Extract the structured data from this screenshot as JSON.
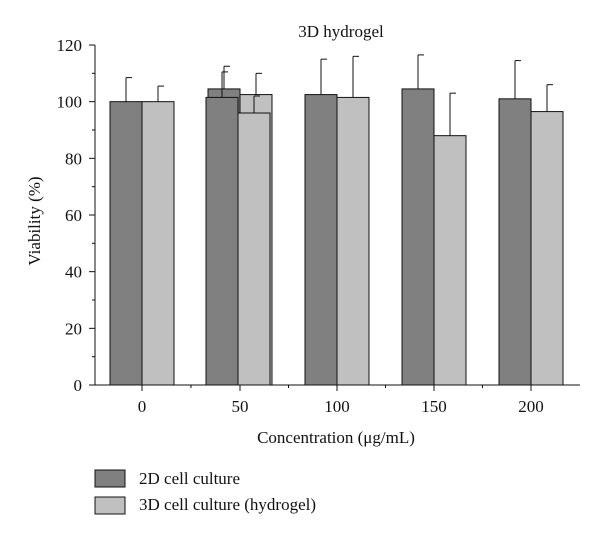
{
  "chart_data": {
    "type": "bar",
    "title": "3D hydrogel",
    "xlabel": "Concentration (μg/mL)",
    "ylabel": "Viability (%)",
    "ylim": [
      0,
      120
    ],
    "yticks": [
      0,
      20,
      40,
      60,
      80,
      100,
      120
    ],
    "categories": [
      "0",
      "50",
      "100",
      "150",
      "200"
    ],
    "series": [
      {
        "name": "2D cell culture",
        "color": "#808080",
        "values": [
          100,
          104.5,
          102.5,
          104.5,
          101
        ],
        "errors": [
          8.5,
          8,
          12.5,
          12,
          13.5
        ]
      },
      {
        "name": "3D cell culture (hydrogel)",
        "color": "#c0c0c0",
        "values": [
          100,
          102.5,
          101.5,
          88,
          96.5
        ],
        "errors": [
          5.5,
          7.5,
          14.5,
          15,
          9.5
        ]
      }
    ],
    "extra_bars": [
      {
        "series": 0,
        "value": 101.5,
        "error": 9
      },
      {
        "series": 1,
        "value": 96,
        "error": 6
      }
    ],
    "grid": false,
    "legend_position": "bottom-left"
  }
}
